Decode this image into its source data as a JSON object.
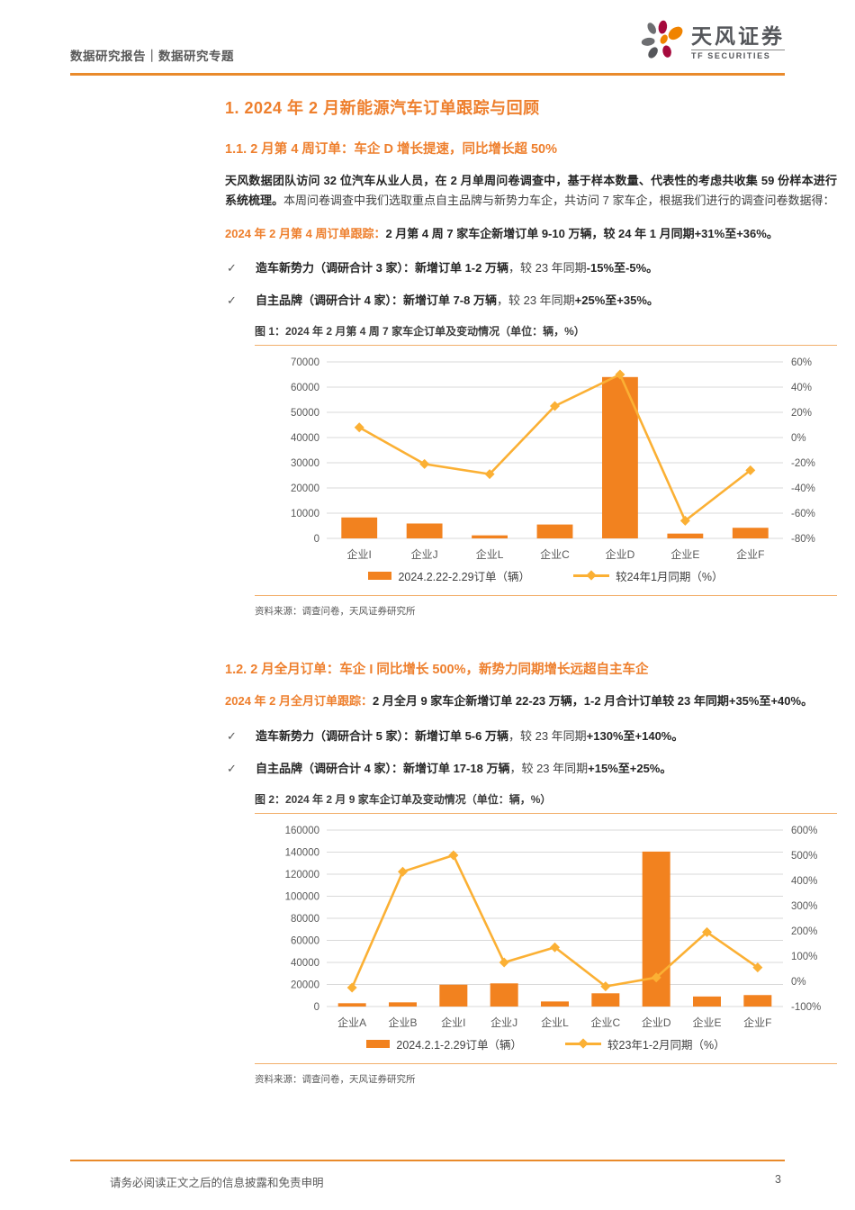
{
  "header": {
    "breadcrumb": "数据研究报告｜数据研究专题",
    "brand_cn": "天风证券",
    "brand_en": "TF SECURITIES"
  },
  "footer": {
    "disclaimer": "请务必阅读正文之后的信息披露和免责申明",
    "page_number": "3"
  },
  "colors": {
    "heading_orange": "#EE7F2D",
    "bar": "#F2821F",
    "line": "#FBB034",
    "grid": "#D9D9D9",
    "axis_text": "#595959"
  },
  "sections": {
    "h1": "1. 2024 年 2 月新能源汽车订单跟踪与回顾",
    "s11": {
      "title": "1.1. 2 月第 4 周订单：车企 D 增长提速，同比增长超 50%",
      "para_segments": [
        {
          "t": "天风数据团队访问 32 位汽车从业人员，在 2 月单周问卷调查中，基于样本数量、代表性的考虑共收集 59 份样本进行系统梳理。",
          "s": "b"
        },
        {
          "t": "本周问卷调查中我们选取重点自主品牌与新势力车企，共访问 7 家车企，根据我们进行的调查问卷数据得：",
          "s": "n"
        }
      ],
      "lead_segments": [
        {
          "t": "2024 年 2 月第 4 周订单跟踪：",
          "s": "ob"
        },
        {
          "t": "2 月第 4 周 7 家车企新增订单 9-10 万辆，较 24 年 1 月同期+31%至+36%。",
          "s": "b"
        }
      ],
      "bullets": [
        {
          "segments": [
            {
              "t": "造车新势力（调研合计 3 家）：",
              "s": "b"
            },
            {
              "t": "新增订单 1-2 万辆",
              "s": "b"
            },
            {
              "t": "，较 23 年同期",
              "s": "n"
            },
            {
              "t": "-15%至-5%。",
              "s": "b"
            }
          ]
        },
        {
          "segments": [
            {
              "t": "自主品牌（调研合计 4 家）：",
              "s": "b"
            },
            {
              "t": "新增订单 7-8 万辆",
              "s": "b"
            },
            {
              "t": "，较 23 年同期",
              "s": "n"
            },
            {
              "t": "+25%至+35%。",
              "s": "b"
            }
          ]
        }
      ]
    },
    "s12": {
      "title": "1.2. 2 月全月订单：车企 I 同比增长 500%，新势力同期增长远超自主车企",
      "lead_segments": [
        {
          "t": "2024 年 2 月全月订单跟踪：",
          "s": "ob"
        },
        {
          "t": "2 月全月 9 家车企新增订单 22-23 万辆，1-2 月合计订单较 23 年同期+35%至+40%。",
          "s": "b"
        }
      ],
      "bullets": [
        {
          "segments": [
            {
              "t": "造车新势力（调研合计 5 家）：",
              "s": "b"
            },
            {
              "t": "新增订单 5-6 万辆",
              "s": "b"
            },
            {
              "t": "，较 23 年同期",
              "s": "n"
            },
            {
              "t": "+130%至+140%。",
              "s": "b"
            }
          ]
        },
        {
          "segments": [
            {
              "t": "自主品牌（调研合计 4 家）：",
              "s": "b"
            },
            {
              "t": "新增订单 17-18 万辆",
              "s": "b"
            },
            {
              "t": "，较 23 年同期",
              "s": "n"
            },
            {
              "t": "+15%至+25%。",
              "s": "b"
            }
          ]
        }
      ]
    }
  },
  "chart_data": [
    {
      "type": "bar",
      "subtype": "bar+line dual axis",
      "title": "图 1：2024 年 2 月第 4 周 7 家车企订单及变动情况（单位：辆，%）",
      "categories": [
        "企业I",
        "企业J",
        "企业L",
        "企业C",
        "企业D",
        "企业E",
        "企业F"
      ],
      "series": [
        {
          "name": "2024.2.22-2.29订单（辆）",
          "type": "bar",
          "axis": "left",
          "values": [
            8300,
            5900,
            1200,
            5500,
            64000,
            1900,
            4200
          ]
        },
        {
          "name": "较24年1月同期（%）",
          "type": "line",
          "axis": "right",
          "values": [
            8,
            -21,
            -29,
            25,
            50,
            -66,
            -26
          ]
        }
      ],
      "left_axis": {
        "min": 0,
        "max": 70000,
        "ticks": [
          70000,
          60000,
          50000,
          40000,
          30000,
          20000,
          10000,
          0
        ]
      },
      "right_axis": {
        "min": -80,
        "max": 60,
        "ticks": [
          60,
          40,
          20,
          0,
          -20,
          -40,
          -60,
          -80
        ],
        "suffix": "%"
      },
      "grid": "horizontal",
      "legend_position": "bottom-center",
      "source": "资料来源：调查问卷，天风证券研究所"
    },
    {
      "type": "bar",
      "subtype": "bar+line dual axis",
      "title": "图 2：2024 年 2 月 9 家车企订单及变动情况（单位：辆，%）",
      "categories": [
        "企业A",
        "企业B",
        "企业I",
        "企业J",
        "企业L",
        "企业C",
        "企业D",
        "企业E",
        "企业F"
      ],
      "series": [
        {
          "name": "2024.2.1-2.29订单（辆）",
          "type": "bar",
          "axis": "left",
          "values": [
            3000,
            3800,
            19800,
            21000,
            4600,
            12000,
            140500,
            9100,
            10400
          ]
        },
        {
          "name": "较23年1-2月同期（%）",
          "type": "line",
          "axis": "right",
          "values": [
            -25,
            435,
            500,
            75,
            135,
            -20,
            15,
            195,
            55
          ]
        }
      ],
      "left_axis": {
        "min": 0,
        "max": 160000,
        "ticks": [
          160000,
          140000,
          120000,
          100000,
          80000,
          60000,
          40000,
          20000,
          0
        ]
      },
      "right_axis": {
        "min": -100,
        "max": 600,
        "ticks": [
          600,
          500,
          400,
          300,
          200,
          100,
          0,
          -100
        ],
        "suffix": "%"
      },
      "grid": "horizontal",
      "legend_position": "bottom-center",
      "source": "资料来源：调查问卷，天风证券研究所"
    }
  ]
}
